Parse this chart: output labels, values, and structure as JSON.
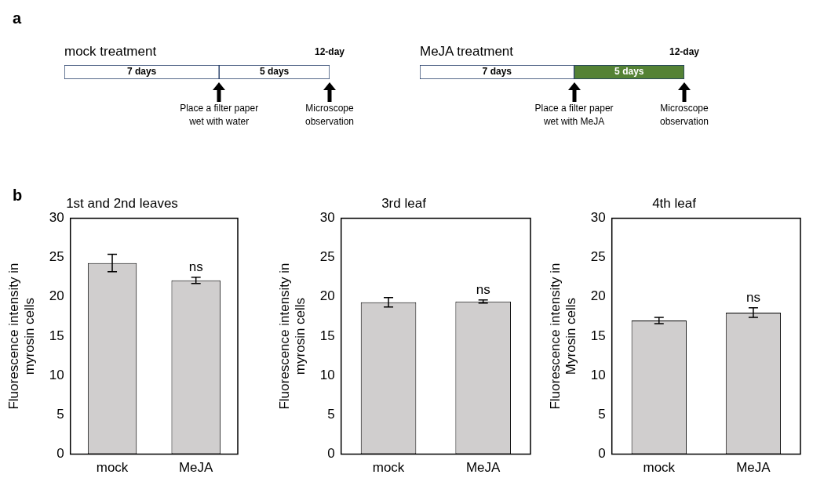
{
  "chart_data": [
    {
      "type": "bar",
      "orientation": "horizontal",
      "stacked": true,
      "title": "mock treatment",
      "categories": [
        null
      ],
      "series": [
        {
          "color": "#ffffff",
          "values": [
            7
          ],
          "value_labels": [
            "7 days"
          ]
        },
        {
          "color": "#ffffff",
          "values": [
            5
          ],
          "value_labels": [
            "5 days"
          ]
        }
      ],
      "annotations": [
        "12-day",
        "Place a filter paper\nwet with water",
        "Microscope\nobservation",
        "a"
      ]
    },
    {
      "type": "bar",
      "orientation": "horizontal",
      "stacked": true,
      "title": "MeJA treatment",
      "categories": [
        null
      ],
      "series": [
        {
          "color": "#ffffff",
          "values": [
            7
          ],
          "value_labels": [
            "7 days"
          ]
        },
        {
          "color": "#548235",
          "values": [
            5
          ],
          "value_labels": [
            "5 days"
          ]
        }
      ],
      "annotations": [
        "12-day",
        "Place a filter paper\nwet with MeJA",
        "Microscope\nobservation"
      ]
    },
    {
      "type": "bar",
      "title": "1st and 2nd leaves",
      "ylabel": "Fluorescence intensity in myrosin cells",
      "categories": [
        "mock",
        "MeJA"
      ],
      "values": [
        24.3,
        22.1
      ],
      "errors": [
        1.1,
        0.4
      ],
      "color": "#d0cece",
      "ylim": [
        0,
        30
      ],
      "yticks": [
        0,
        5,
        10,
        15,
        20,
        25,
        30
      ],
      "annotations": [
        "ns",
        "b"
      ]
    },
    {
      "type": "bar",
      "title": "3rd leaf",
      "ylabel": "Fluorescence intensity in myrosin cells",
      "categories": [
        "mock",
        "MeJA"
      ],
      "values": [
        19.3,
        19.4
      ],
      "errors": [
        0.6,
        0.2
      ],
      "color": "#d0cece",
      "ylim": [
        0,
        30
      ],
      "yticks": [
        0,
        5,
        10,
        15,
        20,
        25,
        30
      ],
      "annotations": [
        "ns"
      ]
    },
    {
      "type": "bar",
      "title": "4th leaf",
      "ylabel": "Fluorescence intensity in Myrosin cells",
      "categories": [
        "mock",
        "MeJA"
      ],
      "values": [
        17.0,
        18.0
      ],
      "errors": [
        0.4,
        0.6
      ],
      "color": "#d0cece",
      "ylim": [
        0,
        30
      ],
      "yticks": [
        0,
        5,
        10,
        15,
        20,
        25,
        30
      ],
      "annotations": [
        "ns"
      ]
    }
  ]
}
